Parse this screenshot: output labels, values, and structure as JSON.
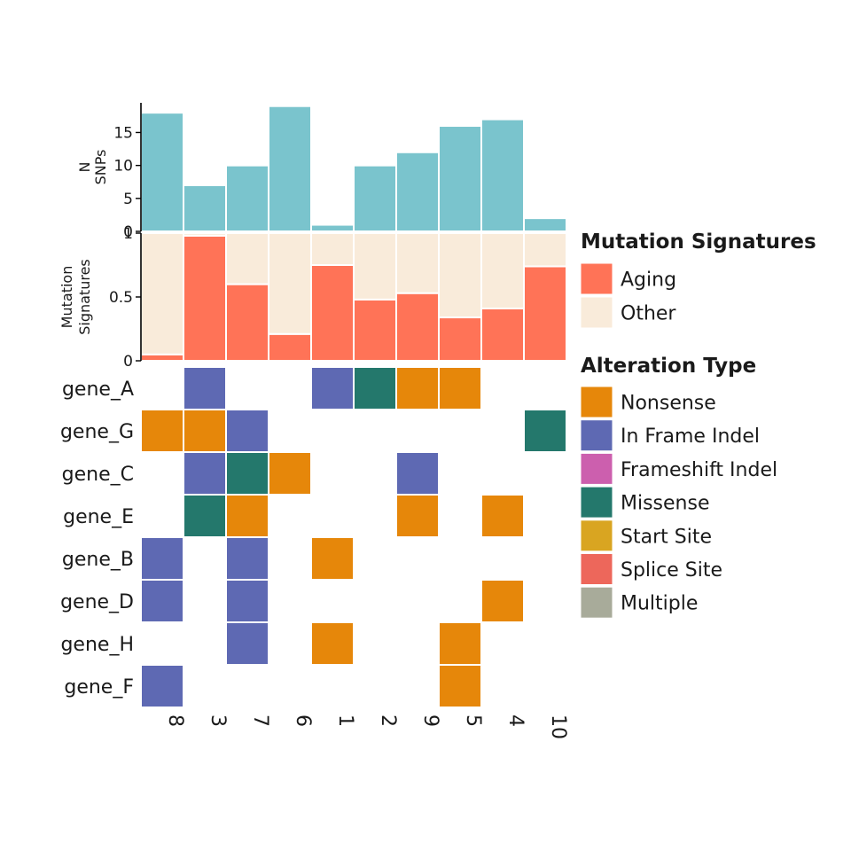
{
  "chart_data": [
    {
      "type": "bar",
      "panel": "snp-count",
      "ylabel": "N\nSNPs",
      "categories": [
        "8",
        "3",
        "7",
        "6",
        "1",
        "2",
        "9",
        "5",
        "4",
        "10"
      ],
      "values": [
        18,
        7,
        10,
        19,
        1,
        10,
        12,
        16,
        17,
        2
      ],
      "ylim": [
        0,
        19.5
      ],
      "yticks": [
        0,
        5,
        10,
        15
      ],
      "color": "#7AC4CD"
    },
    {
      "type": "bar",
      "panel": "mutation-signatures",
      "stacked": true,
      "ylabel": "Mutation\nSignatures",
      "categories": [
        "8",
        "3",
        "7",
        "6",
        "1",
        "2",
        "9",
        "5",
        "4",
        "10"
      ],
      "ylim": [
        0,
        1
      ],
      "yticks": [
        0,
        0.5,
        1
      ],
      "ytick_labels": [
        "0",
        "0.5",
        "1"
      ],
      "series": [
        {
          "name": "Aging",
          "color": "#FF7357",
          "values": [
            0.05,
            0.98,
            0.6,
            0.21,
            0.75,
            0.48,
            0.53,
            0.34,
            0.41,
            0.74
          ]
        },
        {
          "name": "Other",
          "color": "#F9EBDA",
          "values": [
            0.95,
            0.02,
            0.4,
            0.79,
            0.25,
            0.52,
            0.47,
            0.66,
            0.59,
            0.26
          ]
        }
      ]
    },
    {
      "type": "heatmap",
      "panel": "oncoplot",
      "x": [
        "8",
        "3",
        "7",
        "6",
        "1",
        "2",
        "9",
        "5",
        "4",
        "10"
      ],
      "y": [
        "gene_A",
        "gene_G",
        "gene_C",
        "gene_E",
        "gene_B",
        "gene_D",
        "gene_H",
        "gene_F"
      ],
      "cells": [
        [
          "gene_A",
          "3",
          "In Frame Indel"
        ],
        [
          "gene_A",
          "1",
          "In Frame Indel"
        ],
        [
          "gene_A",
          "2",
          "Missense"
        ],
        [
          "gene_A",
          "9",
          "Nonsense"
        ],
        [
          "gene_A",
          "5",
          "Nonsense"
        ],
        [
          "gene_G",
          "8",
          "Nonsense"
        ],
        [
          "gene_G",
          "3",
          "Nonsense"
        ],
        [
          "gene_G",
          "7",
          "In Frame Indel"
        ],
        [
          "gene_G",
          "10",
          "Missense"
        ],
        [
          "gene_C",
          "3",
          "In Frame Indel"
        ],
        [
          "gene_C",
          "7",
          "Missense"
        ],
        [
          "gene_C",
          "6",
          "Nonsense"
        ],
        [
          "gene_C",
          "9",
          "In Frame Indel"
        ],
        [
          "gene_E",
          "3",
          "Missense"
        ],
        [
          "gene_E",
          "7",
          "Nonsense"
        ],
        [
          "gene_E",
          "9",
          "Nonsense"
        ],
        [
          "gene_E",
          "4",
          "Nonsense"
        ],
        [
          "gene_B",
          "8",
          "In Frame Indel"
        ],
        [
          "gene_B",
          "7",
          "In Frame Indel"
        ],
        [
          "gene_B",
          "1",
          "Nonsense"
        ],
        [
          "gene_D",
          "8",
          "In Frame Indel"
        ],
        [
          "gene_D",
          "7",
          "In Frame Indel"
        ],
        [
          "gene_D",
          "4",
          "Nonsense"
        ],
        [
          "gene_H",
          "7",
          "In Frame Indel"
        ],
        [
          "gene_H",
          "1",
          "Nonsense"
        ],
        [
          "gene_H",
          "5",
          "Nonsense"
        ],
        [
          "gene_F",
          "8",
          "In Frame Indel"
        ],
        [
          "gene_F",
          "5",
          "Nonsense"
        ]
      ]
    }
  ],
  "legends": {
    "signatures": {
      "title": "Mutation Signatures",
      "items": [
        {
          "label": "Aging",
          "color": "#FF7357"
        },
        {
          "label": "Other",
          "color": "#F9EBDA"
        }
      ]
    },
    "alterations": {
      "title": "Alteration Type",
      "items": [
        {
          "label": "Nonsense",
          "color": "#E6870A"
        },
        {
          "label": "In Frame Indel",
          "color": "#5E69B3"
        },
        {
          "label": "Frameshift Indel",
          "color": "#CC5FAE"
        },
        {
          "label": "Missense",
          "color": "#24786C"
        },
        {
          "label": "Start Site",
          "color": "#D9A521"
        },
        {
          "label": "Splice Site",
          "color": "#ED675B"
        },
        {
          "label": "Multiple",
          "color": "#A8AB9A"
        }
      ]
    }
  }
}
